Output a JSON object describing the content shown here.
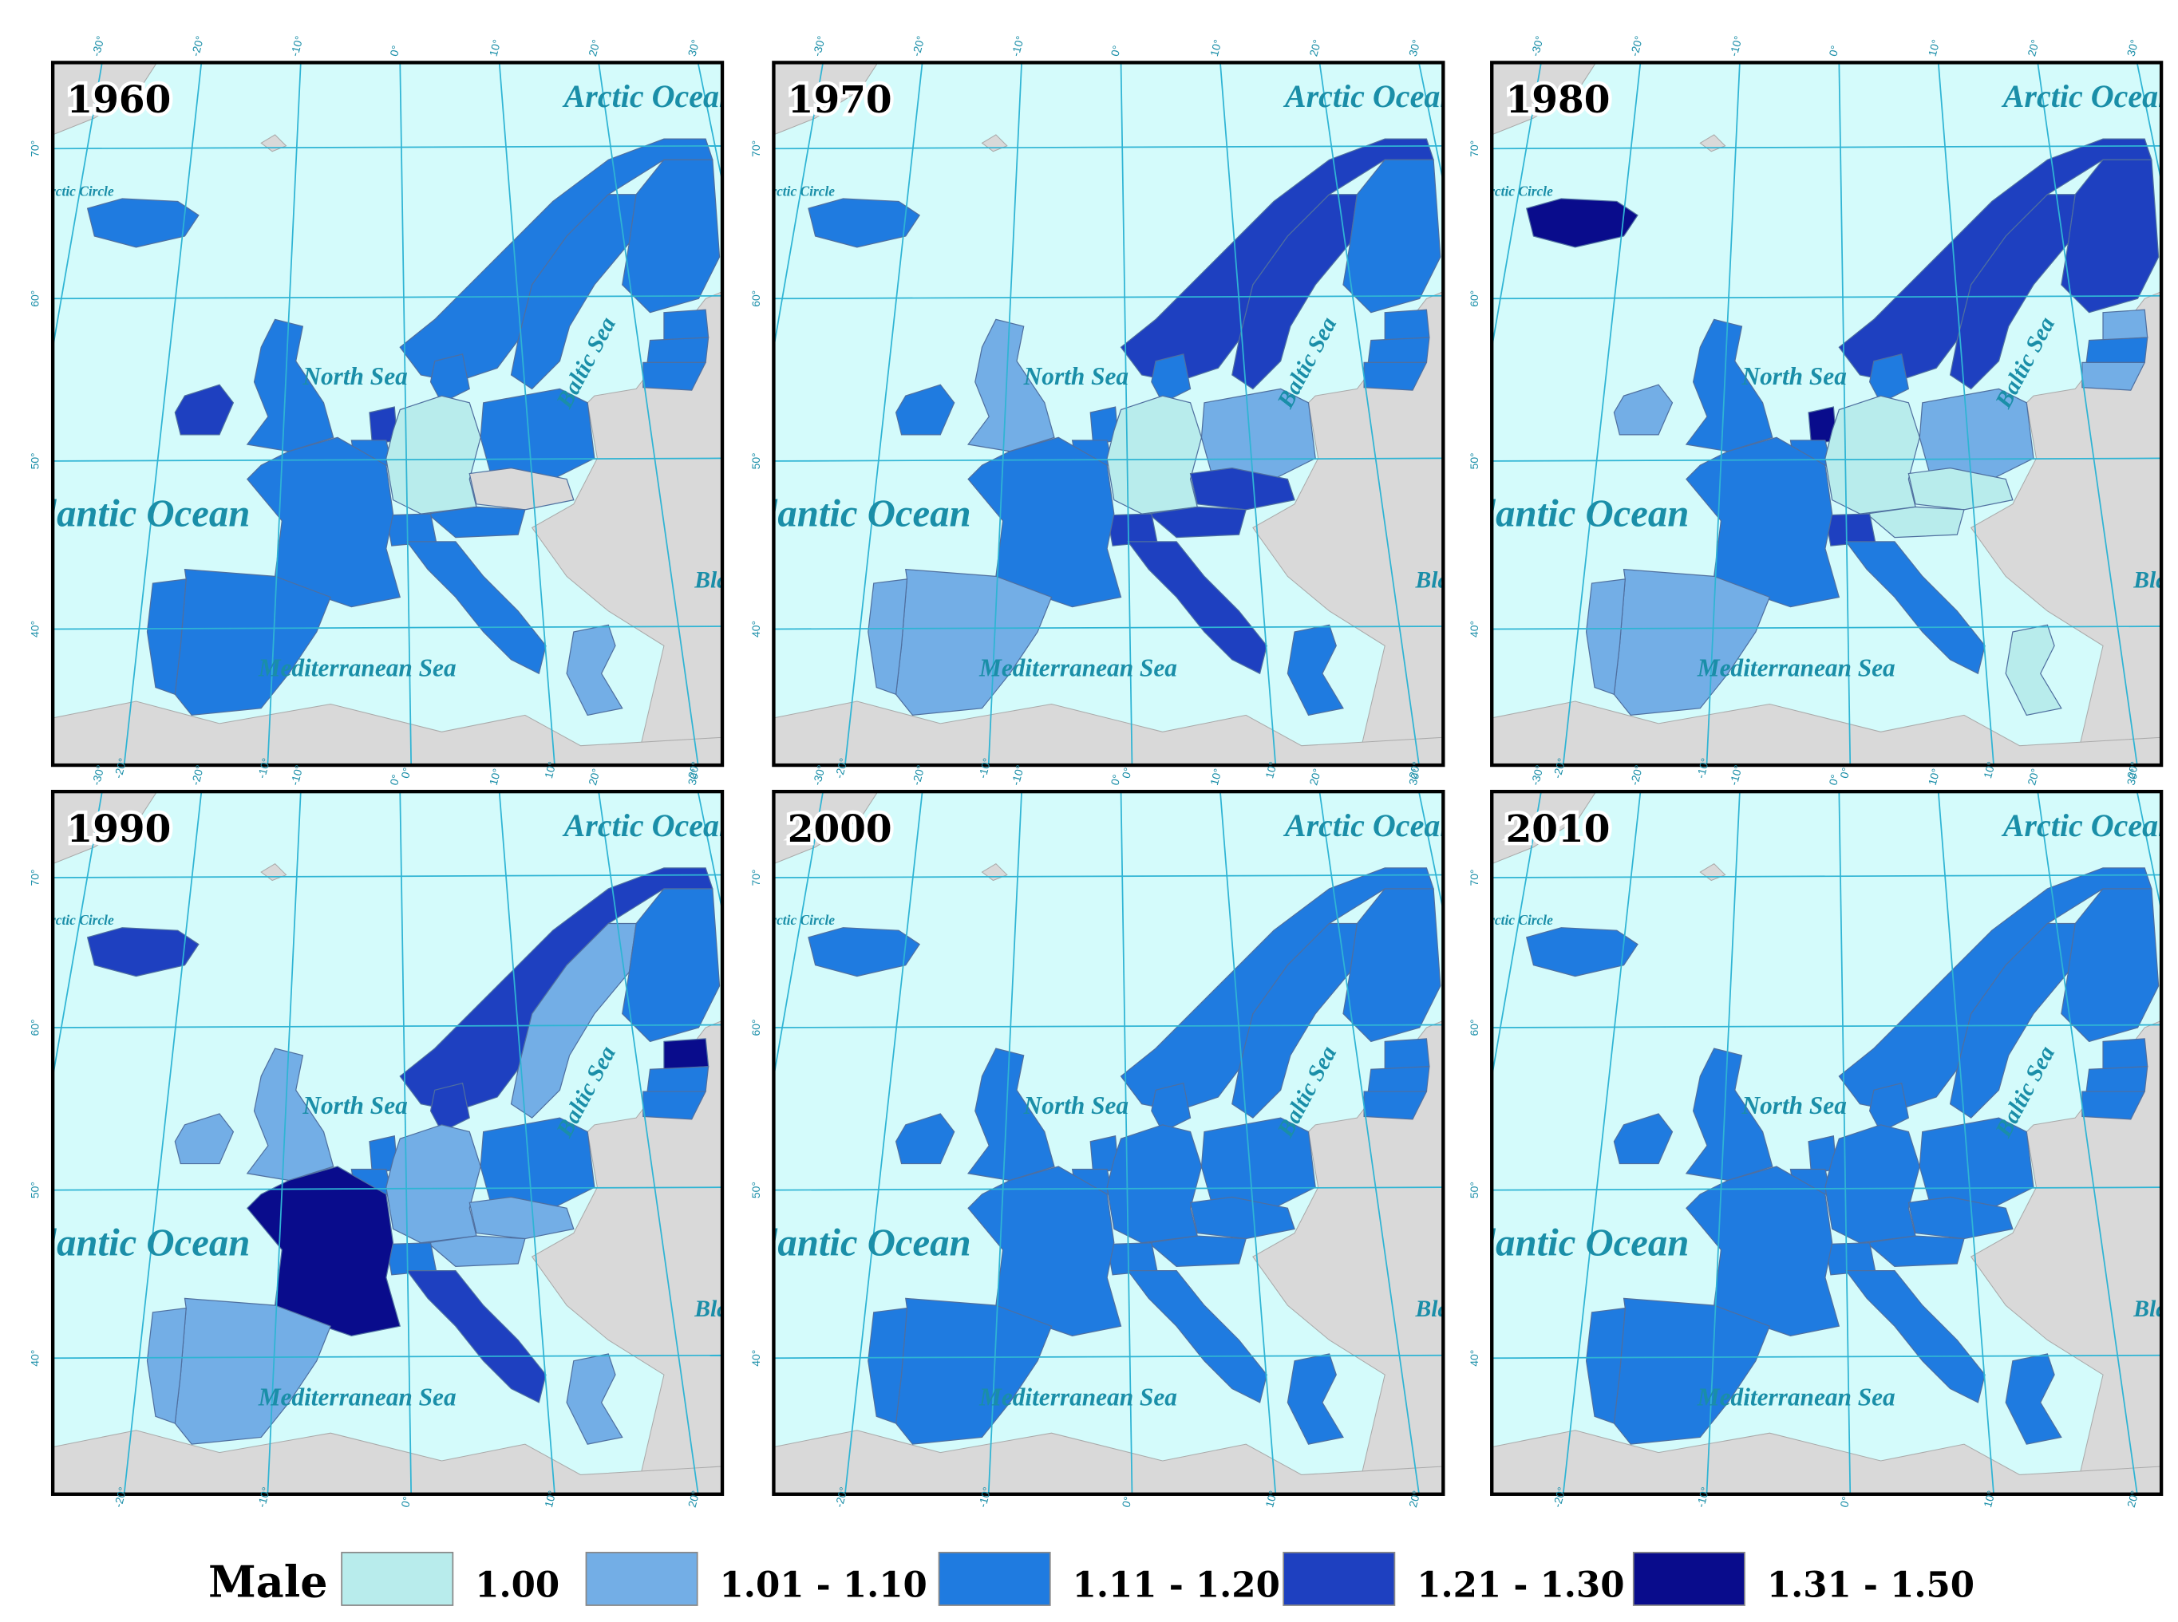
{
  "legend": {
    "title": "Male",
    "classes": [
      {
        "label": "1.00",
        "color": "#b8ecec"
      },
      {
        "label": "1.01 - 1.10",
        "color": "#73aee6"
      },
      {
        "label": "1.11 - 1.20",
        "color": "#1f7be0"
      },
      {
        "label": "1.21 - 1.30",
        "color": "#1e40c0"
      },
      {
        "label": "1.31 - 1.50",
        "color": "#090c8c"
      }
    ]
  },
  "map_labels": {
    "arctic_ocean": "Arctic Ocean",
    "north_sea": "North Sea",
    "baltic_sea": "Baltic Sea",
    "atlantic_ocean": "Atlantic Ocean",
    "mediterranean_sea": "Mediterranean Sea",
    "black_sea": "Black Sea",
    "arctic_circle": "Arctic Circle"
  },
  "graticule": {
    "lon_labels": [
      "-30°",
      "-20°",
      "-10°",
      "0°",
      "10°",
      "20°",
      "30°"
    ],
    "lat_labels": [
      "70°",
      "60°",
      "50°",
      "40°"
    ]
  },
  "sea_color": "#d4fbfb",
  "land_color": "#d9d9d9",
  "panels": [
    {
      "year": "1960",
      "fills": [
        "#1f7be0",
        "#1e40c0",
        "#1f7be0",
        "#1f7be0",
        "#1f7be0",
        "#1f7be0",
        "#1f7be0",
        "#1f7be0",
        "#1f7be0",
        "#1f7be0",
        "#1e40c0",
        "#1f7be0",
        "#b8ecec",
        "#1f7be0",
        "#d9d9d9",
        "#1f7be0",
        "#1f7be0",
        "#1f7be0",
        "#1f7be0",
        "#1f7be0",
        "#1f7be0",
        "#73aee6"
      ]
    },
    {
      "year": "1970",
      "fills": [
        "#1f7be0",
        "#1f7be0",
        "#73aee6",
        "#1e40c0",
        "#1e40c0",
        "#1f7be0",
        "#1f7be0",
        "#1f7be0",
        "#1f7be0",
        "#1f7be0",
        "#1f7be0",
        "#1f7be0",
        "#b8ecec",
        "#73aee6",
        "#1e40c0",
        "#1e40c0",
        "#1e40c0",
        "#1f7be0",
        "#73aee6",
        "#73aee6",
        "#1e40c0",
        "#1f7be0"
      ]
    },
    {
      "year": "1980",
      "fills": [
        "#090c8c",
        "#73aee6",
        "#1f7be0",
        "#1e40c0",
        "#1e40c0",
        "#1e40c0",
        "#1f7be0",
        "#73aee6",
        "#1f7be0",
        "#73aee6",
        "#090c8c",
        "#1f7be0",
        "#b8ecec",
        "#73aee6",
        "#b8ecec",
        "#b8ecec",
        "#1e40c0",
        "#1f7be0",
        "#73aee6",
        "#73aee6",
        "#1f7be0",
        "#b8ecec"
      ]
    },
    {
      "year": "1990",
      "fills": [
        "#1e40c0",
        "#73aee6",
        "#73aee6",
        "#1e40c0",
        "#73aee6",
        "#1f7be0",
        "#1e40c0",
        "#090c8c",
        "#1f7be0",
        "#1f7be0",
        "#1f7be0",
        "#1f7be0",
        "#73aee6",
        "#1f7be0",
        "#73aee6",
        "#73aee6",
        "#1f7be0",
        "#090c8c",
        "#73aee6",
        "#73aee6",
        "#1e40c0",
        "#73aee6"
      ]
    },
    {
      "year": "2000",
      "fills": [
        "#1f7be0",
        "#1f7be0",
        "#1f7be0",
        "#1f7be0",
        "#1f7be0",
        "#1f7be0",
        "#1f7be0",
        "#1f7be0",
        "#1f7be0",
        "#1f7be0",
        "#1f7be0",
        "#1f7be0",
        "#1f7be0",
        "#1f7be0",
        "#1f7be0",
        "#1f7be0",
        "#1f7be0",
        "#1f7be0",
        "#1f7be0",
        "#1f7be0",
        "#1f7be0",
        "#1f7be0"
      ]
    },
    {
      "year": "2010",
      "fills": [
        "#1f7be0",
        "#1f7be0",
        "#1f7be0",
        "#1f7be0",
        "#1f7be0",
        "#1f7be0",
        "#1f7be0",
        "#1f7be0",
        "#1f7be0",
        "#1f7be0",
        "#1f7be0",
        "#1f7be0",
        "#1f7be0",
        "#1f7be0",
        "#1f7be0",
        "#1f7be0",
        "#1f7be0",
        "#1f7be0",
        "#1f7be0",
        "#1f7be0",
        "#1f7be0",
        "#1f7be0"
      ]
    }
  ]
}
